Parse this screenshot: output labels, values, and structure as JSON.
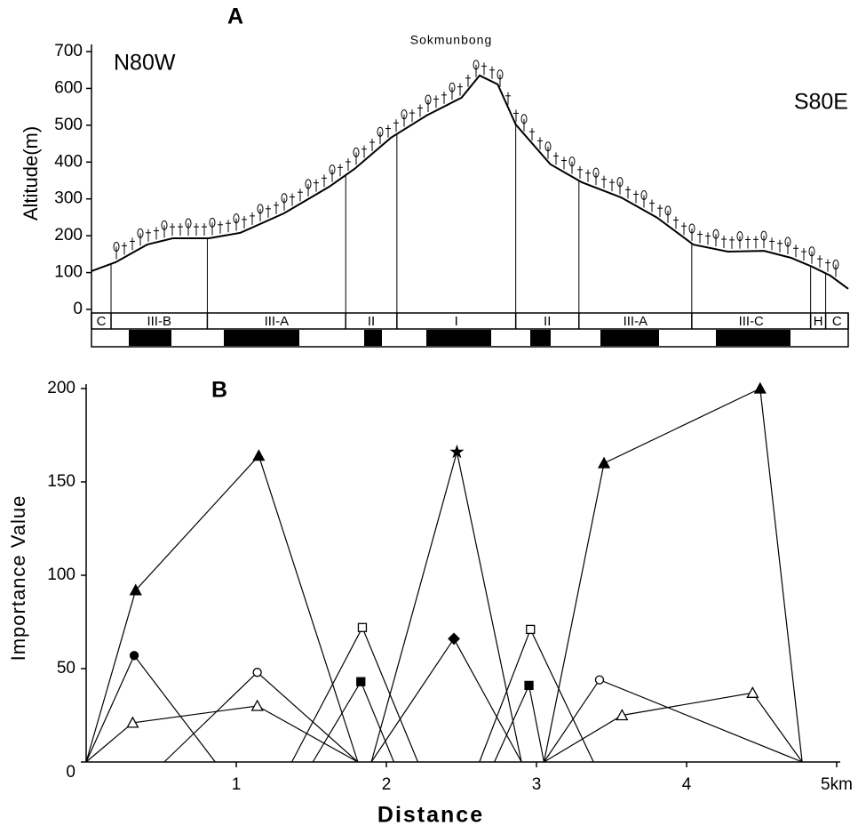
{
  "chart_data": [
    {
      "type": "profile",
      "label": "A",
      "annotation": "Sokmunbong",
      "left_label": "N80W",
      "right_label": "S80E",
      "ylabel": "Altitude(m)",
      "color": "#000000",
      "x": [
        0.04,
        0.2,
        0.41,
        0.58,
        0.82,
        1.03,
        1.32,
        1.62,
        1.79,
        2.03,
        2.27,
        2.5,
        2.62,
        2.74,
        2.86,
        3.09,
        3.3,
        3.56,
        3.8,
        4.04,
        4.27,
        4.51,
        4.69,
        4.83,
        4.95,
        5.07
      ],
      "values": [
        104,
        128,
        176,
        193,
        193,
        208,
        261,
        333,
        382,
        466,
        527,
        575,
        635,
        611,
        502,
        394,
        345,
        304,
        249,
        176,
        157,
        159,
        140,
        116,
        92,
        56
      ],
      "xlim": [
        0.04,
        5.07
      ],
      "ylim": [
        0,
        700
      ],
      "yticks": [
        0,
        100,
        200,
        300,
        400,
        500,
        600,
        700
      ],
      "zones": {
        "labels": [
          "C",
          "III-B",
          "III-A",
          "II",
          "I",
          "II",
          "III-A",
          "III-C",
          "H",
          "C"
        ],
        "bounds": [
          0.04,
          0.17,
          0.81,
          1.73,
          2.07,
          2.86,
          3.28,
          4.03,
          4.82,
          4.92,
          5.07
        ]
      }
    },
    {
      "type": "line",
      "label": "B",
      "ylabel": "Importance Value",
      "xlabel": "Distance",
      "xlim": [
        0,
        5
      ],
      "ylim": [
        0,
        200
      ],
      "xticks": [
        1,
        2,
        3,
        4,
        {
          "value": 5,
          "label": "5km"
        }
      ],
      "yticks": [
        0,
        50,
        100,
        150,
        200
      ],
      "series": [
        {
          "marker": "filled-triangle",
          "color": "#000000",
          "x": [
            0,
            0.33,
            1.15,
            1.81
          ],
          "values": [
            0,
            92,
            164,
            0
          ]
        },
        {
          "marker": "star",
          "color": "#000000",
          "x": [
            1.9,
            2.47,
            2.9
          ],
          "values": [
            0,
            166,
            0
          ]
        },
        {
          "marker": "filled-triangle",
          "color": "#000000",
          "x": [
            3.05,
            3.45,
            4.49,
            4.77
          ],
          "values": [
            0,
            160,
            200,
            0
          ]
        },
        {
          "marker": "filled-circle",
          "color": "#000000",
          "x": [
            0,
            0.32,
            0.86
          ],
          "values": [
            0,
            57,
            0
          ]
        },
        {
          "marker": "open-circle",
          "color": "#000000",
          "x": [
            0.52,
            1.14,
            1.81
          ],
          "values": [
            0,
            48,
            0
          ]
        },
        {
          "marker": "open-triangle",
          "color": "#000000",
          "x": [
            0,
            0.31,
            1.14,
            1.81
          ],
          "values": [
            0,
            21,
            30,
            0
          ]
        },
        {
          "marker": "open-square",
          "color": "#000000",
          "x": [
            1.37,
            1.84,
            2.21
          ],
          "values": [
            0,
            72,
            0
          ]
        },
        {
          "marker": "filled-square",
          "color": "#000000",
          "x": [
            1.51,
            1.83,
            2.05
          ],
          "values": [
            0,
            43,
            0
          ]
        },
        {
          "marker": "filled-diamond",
          "color": "#000000",
          "x": [
            1.9,
            2.45,
            2.9
          ],
          "values": [
            0,
            66,
            0
          ]
        },
        {
          "marker": "open-square",
          "color": "#000000",
          "x": [
            2.62,
            2.96,
            3.38
          ],
          "values": [
            0,
            71,
            0
          ]
        },
        {
          "marker": "filled-square",
          "color": "#000000",
          "x": [
            2.72,
            2.95,
            3.05
          ],
          "values": [
            0,
            41,
            0
          ]
        },
        {
          "marker": "open-circle",
          "color": "#000000",
          "x": [
            3.05,
            3.42,
            4.77
          ],
          "values": [
            0,
            44,
            0
          ]
        },
        {
          "marker": "open-triangle",
          "color": "#000000",
          "x": [
            3.05,
            3.57,
            4.44,
            4.77
          ],
          "values": [
            0,
            25,
            37,
            0
          ]
        }
      ]
    }
  ]
}
